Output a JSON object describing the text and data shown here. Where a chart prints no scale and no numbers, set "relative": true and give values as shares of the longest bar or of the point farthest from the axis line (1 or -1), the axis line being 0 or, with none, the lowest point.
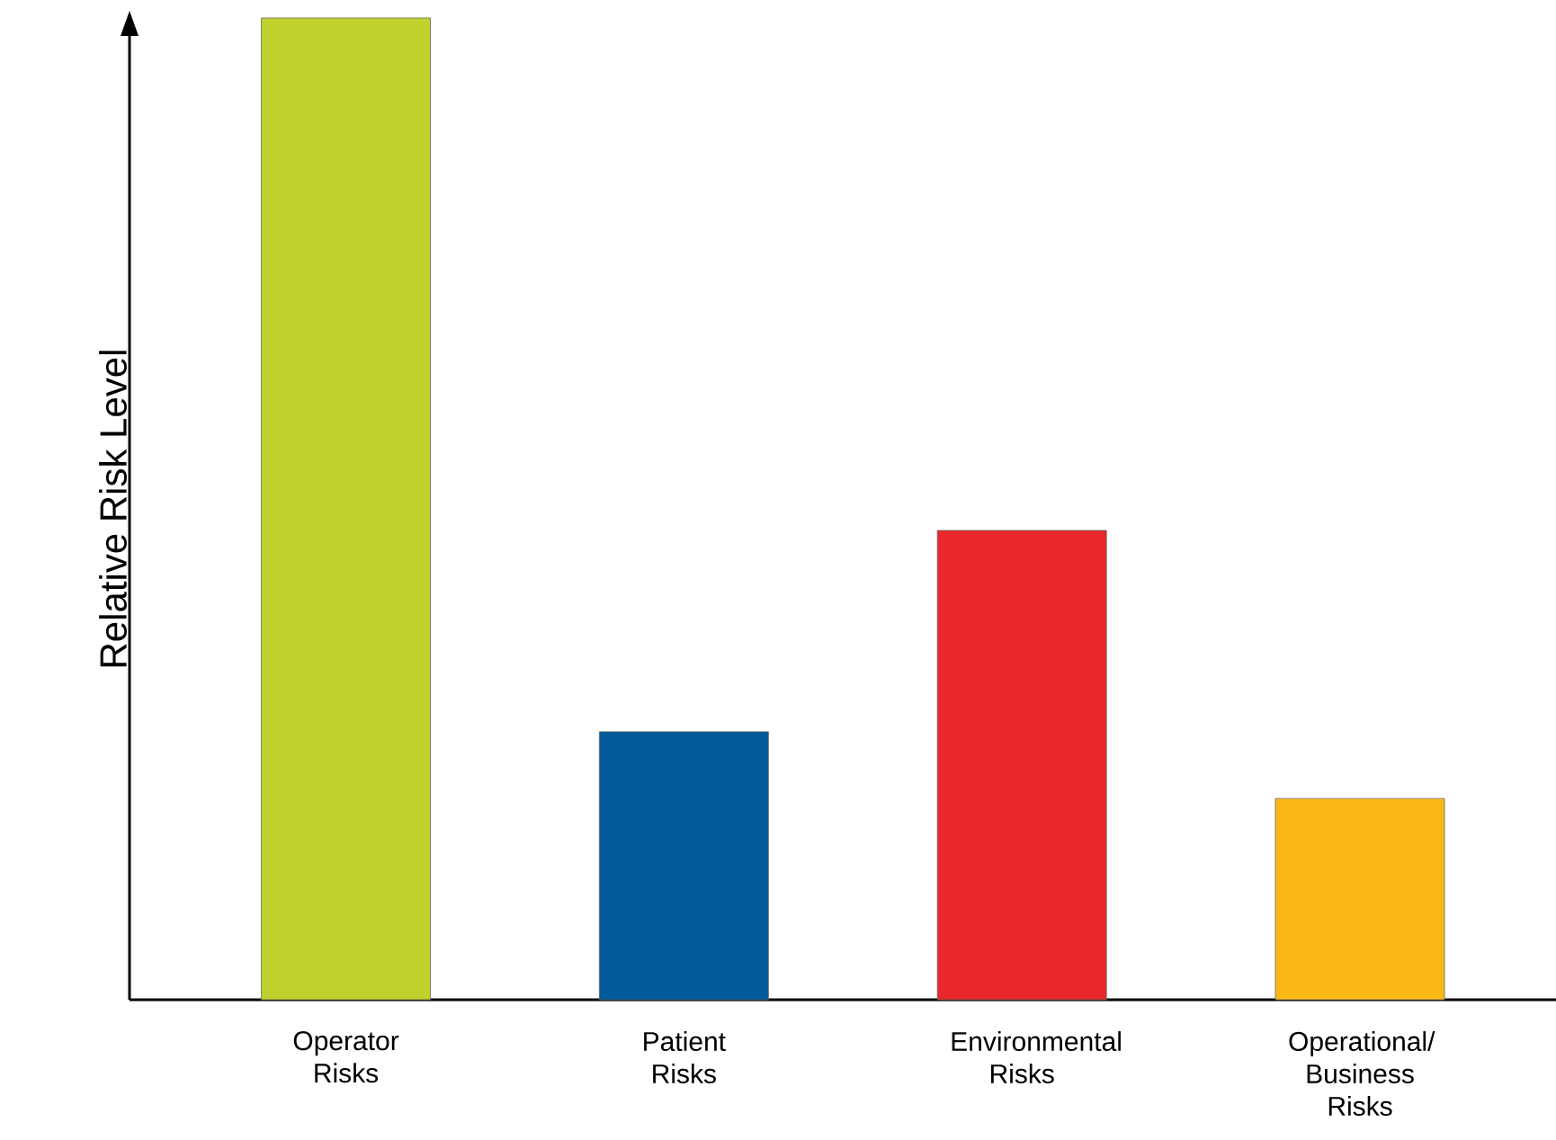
{
  "chart_data": {
    "type": "bar",
    "ylabel": "Relative Risk Level",
    "relative": true,
    "categories": [
      "Operator Risks",
      "Patient Risks",
      "Environmental Risks",
      "Operational/ Business Risks"
    ],
    "values": [
      1,
      0.273,
      0.478,
      0.205
    ],
    "colors": [
      "#c0d12e",
      "#005a9c",
      "#e8282b",
      "#fbb817"
    ]
  }
}
